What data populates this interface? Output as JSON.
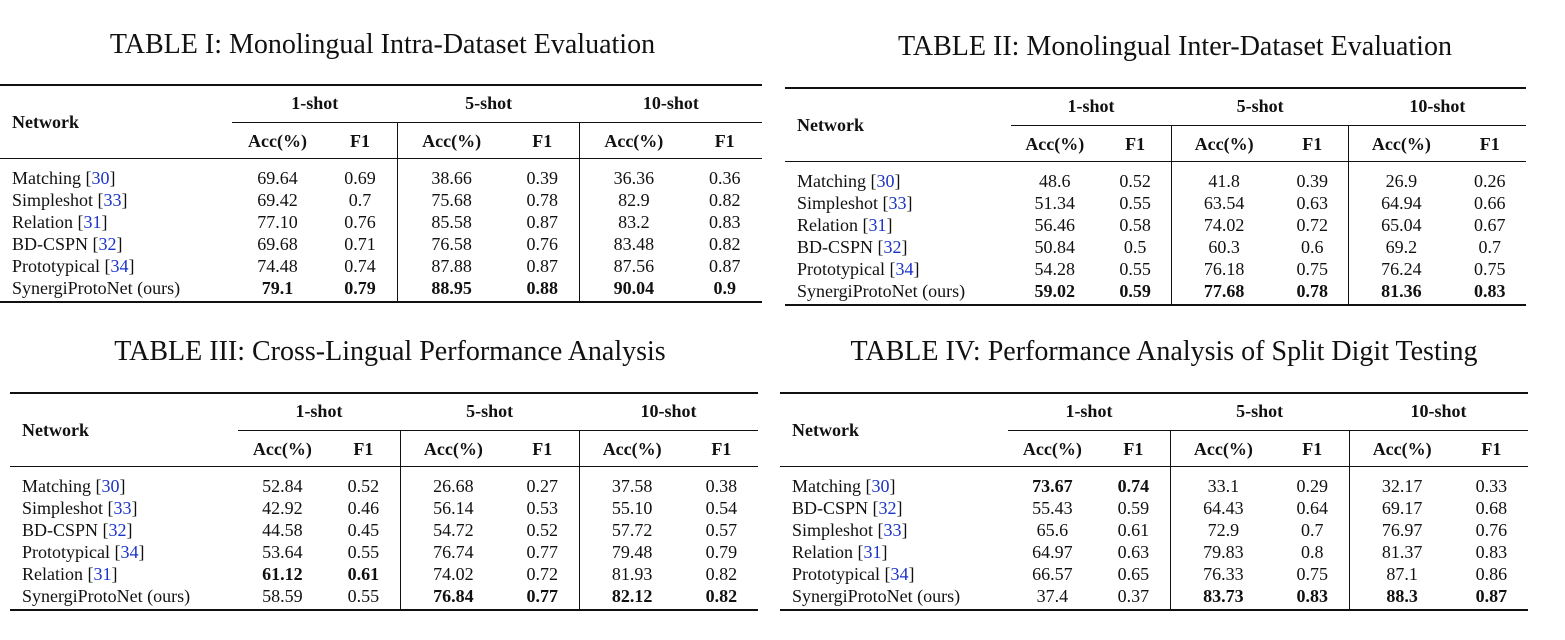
{
  "accent_citation_color": "#1a33c8",
  "columns": {
    "network": "Network",
    "groups": [
      "1-shot",
      "5-shot",
      "10-shot"
    ],
    "acc": "Acc(%)",
    "f1": "F1"
  },
  "tables": [
    {
      "title": "TABLE I: Monolingual Intra-Dataset Evaluation",
      "rows": [
        {
          "name": "Matching",
          "cite": "30",
          "values": [
            "69.64",
            "0.69",
            "38.66",
            "0.39",
            "36.36",
            "0.36"
          ],
          "bold": []
        },
        {
          "name": "Simpleshot",
          "cite": "33",
          "values": [
            "69.42",
            "0.7",
            "75.68",
            "0.78",
            "82.9",
            "0.82"
          ],
          "bold": []
        },
        {
          "name": "Relation",
          "cite": "31",
          "values": [
            "77.10",
            "0.76",
            "85.58",
            "0.87",
            "83.2",
            "0.83"
          ],
          "bold": []
        },
        {
          "name": "BD-CSPN",
          "cite": "32",
          "values": [
            "69.68",
            "0.71",
            "76.58",
            "0.76",
            "83.48",
            "0.82"
          ],
          "bold": []
        },
        {
          "name": "Prototypical",
          "cite": "34",
          "values": [
            "74.48",
            "0.74",
            "87.88",
            "0.87",
            "87.56",
            "0.87"
          ],
          "bold": []
        },
        {
          "name": "SynergiProtoNet (ours)",
          "cite": "",
          "values": [
            "79.1",
            "0.79",
            "88.95",
            "0.88",
            "90.04",
            "0.9"
          ],
          "bold": [
            0,
            1,
            2,
            3,
            4,
            5
          ]
        }
      ]
    },
    {
      "title": "TABLE II: Monolingual Inter-Dataset Evaluation",
      "rows": [
        {
          "name": "Matching",
          "cite": "30",
          "values": [
            "48.6",
            "0.52",
            "41.8",
            "0.39",
            "26.9",
            "0.26"
          ],
          "bold": []
        },
        {
          "name": "Simpleshot",
          "cite": "33",
          "values": [
            "51.34",
            "0.55",
            "63.54",
            "0.63",
            "64.94",
            "0.66"
          ],
          "bold": []
        },
        {
          "name": "Relation",
          "cite": "31",
          "values": [
            "56.46",
            "0.58",
            "74.02",
            "0.72",
            "65.04",
            "0.67"
          ],
          "bold": []
        },
        {
          "name": "BD-CSPN",
          "cite": "32",
          "values": [
            "50.84",
            "0.5",
            "60.3",
            "0.6",
            "69.2",
            "0.7"
          ],
          "bold": []
        },
        {
          "name": "Prototypical",
          "cite": "34",
          "values": [
            "54.28",
            "0.55",
            "76.18",
            "0.75",
            "76.24",
            "0.75"
          ],
          "bold": []
        },
        {
          "name": "SynergiProtoNet (ours)",
          "cite": "",
          "values": [
            "59.02",
            "0.59",
            "77.68",
            "0.78",
            "81.36",
            "0.83"
          ],
          "bold": [
            0,
            1,
            2,
            3,
            4,
            5
          ]
        }
      ]
    },
    {
      "title": "TABLE III: Cross-Lingual Performance Analysis",
      "rows": [
        {
          "name": "Matching",
          "cite": "30",
          "values": [
            "52.84",
            "0.52",
            "26.68",
            "0.27",
            "37.58",
            "0.38"
          ],
          "bold": []
        },
        {
          "name": "Simpleshot",
          "cite": "33",
          "values": [
            "42.92",
            "0.46",
            "56.14",
            "0.53",
            "55.10",
            "0.54"
          ],
          "bold": []
        },
        {
          "name": "BD-CSPN",
          "cite": "32",
          "values": [
            "44.58",
            "0.45",
            "54.72",
            "0.52",
            "57.72",
            "0.57"
          ],
          "bold": []
        },
        {
          "name": "Prototypical",
          "cite": "34",
          "values": [
            "53.64",
            "0.55",
            "76.74",
            "0.77",
            "79.48",
            "0.79"
          ],
          "bold": []
        },
        {
          "name": "Relation",
          "cite": "31",
          "values": [
            "61.12",
            "0.61",
            "74.02",
            "0.72",
            "81.93",
            "0.82"
          ],
          "bold": [
            0,
            1
          ]
        },
        {
          "name": "SynergiProtoNet (ours)",
          "cite": "",
          "values": [
            "58.59",
            "0.55",
            "76.84",
            "0.77",
            "82.12",
            "0.82"
          ],
          "bold": [
            2,
            3,
            4,
            5
          ]
        }
      ]
    },
    {
      "title": "TABLE IV: Performance Analysis of Split Digit Testing",
      "rows": [
        {
          "name": "Matching",
          "cite": "30",
          "values": [
            "73.67",
            "0.74",
            "33.1",
            "0.29",
            "32.17",
            "0.33"
          ],
          "bold": [
            0,
            1
          ]
        },
        {
          "name": "BD-CSPN",
          "cite": "32",
          "values": [
            "55.43",
            "0.59",
            "64.43",
            "0.64",
            "69.17",
            "0.68"
          ],
          "bold": []
        },
        {
          "name": "Simpleshot",
          "cite": "33",
          "values": [
            "65.6",
            "0.61",
            "72.9",
            "0.7",
            "76.97",
            "0.76"
          ],
          "bold": []
        },
        {
          "name": "Relation",
          "cite": "31",
          "values": [
            "64.97",
            "0.63",
            "79.83",
            "0.8",
            "81.37",
            "0.83"
          ],
          "bold": []
        },
        {
          "name": "Prototypical",
          "cite": "34",
          "values": [
            "66.57",
            "0.65",
            "76.33",
            "0.75",
            "87.1",
            "0.86"
          ],
          "bold": []
        },
        {
          "name": "SynergiProtoNet (ours)",
          "cite": "",
          "values": [
            "37.4",
            "0.37",
            "83.73",
            "0.83",
            "88.3",
            "0.87"
          ],
          "bold": [
            2,
            3,
            4,
            5
          ]
        }
      ]
    }
  ]
}
